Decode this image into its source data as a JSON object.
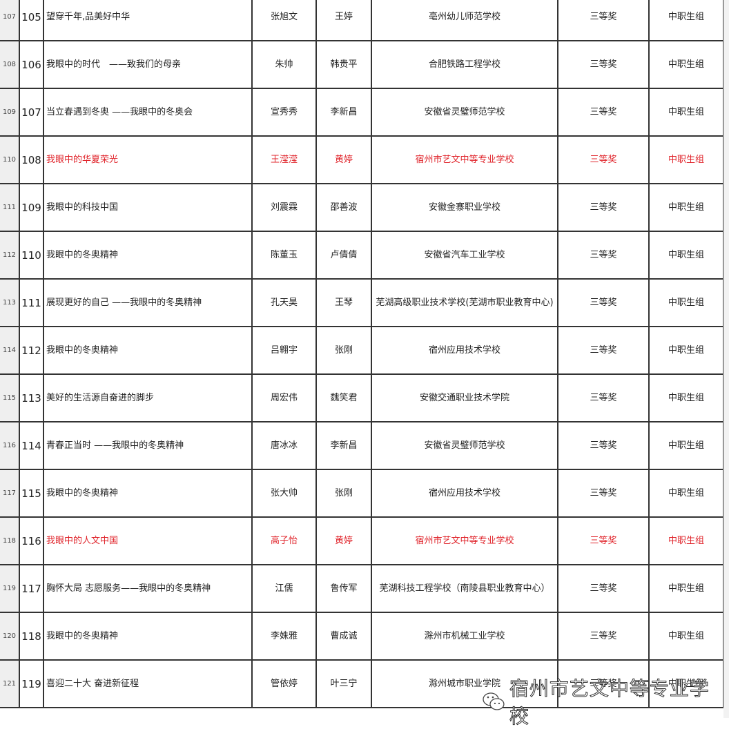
{
  "rows": [
    {
      "row_header": "107",
      "no": "105",
      "title": "望穿千年,品美好中华",
      "student": "张旭文",
      "teacher": "王婷",
      "school": "亳州幼儿师范学校",
      "award": "三等奖",
      "group": "中职生组",
      "highlight": false
    },
    {
      "row_header": "108",
      "no": "106",
      "title": "我眼中的时代　——致我们的母亲",
      "student": "朱帅",
      "teacher": "韩贵平",
      "school": "合肥铁路工程学校",
      "award": "三等奖",
      "group": "中职生组",
      "highlight": false
    },
    {
      "row_header": "109",
      "no": "107",
      "title": "当立春遇到冬奥 ——我眼中的冬奥会",
      "student": "宣秀秀",
      "teacher": "李新昌",
      "school": "安徽省灵璧师范学校",
      "award": "三等奖",
      "group": "中职生组",
      "highlight": false
    },
    {
      "row_header": "110",
      "no": "108",
      "title": "我眼中的华夏荣光",
      "student": "王滢滢",
      "teacher": "黄婷",
      "school": "宿州市艺文中等专业学校",
      "award": "三等奖",
      "group": "中职生组",
      "highlight": true
    },
    {
      "row_header": "111",
      "no": "109",
      "title": "我眼中的科技中国",
      "student": "刘震霖",
      "teacher": "邵善波",
      "school": "安徽金寨职业学校",
      "award": "三等奖",
      "group": "中职生组",
      "highlight": false
    },
    {
      "row_header": "112",
      "no": "110",
      "title": "我眼中的冬奥精神",
      "student": "陈董玉",
      "teacher": "卢倩倩",
      "school": "安徽省汽车工业学校",
      "award": "三等奖",
      "group": "中职生组",
      "highlight": false
    },
    {
      "row_header": "113",
      "no": "111",
      "title": "展现更好的自己 ——我眼中的冬奥精神",
      "student": "孔天昊",
      "teacher": "王琴",
      "school": "芜湖高级职业技术学校(芜湖市职业教育中心)",
      "award": "三等奖",
      "group": "中职生组",
      "highlight": false
    },
    {
      "row_header": "114",
      "no": "112",
      "title": "我眼中的冬奥精神",
      "student": "吕翱宇",
      "teacher": "张刚",
      "school": "宿州应用技术学校",
      "award": "三等奖",
      "group": "中职生组",
      "highlight": false
    },
    {
      "row_header": "115",
      "no": "113",
      "title": "美好的生活源自奋进的脚步",
      "student": "周宏伟",
      "teacher": "魏笑君",
      "school": "安徽交通职业技术学院",
      "award": "三等奖",
      "group": "中职生组",
      "highlight": false
    },
    {
      "row_header": "116",
      "no": "114",
      "title": "青春正当时 ——我眼中的冬奥精神",
      "student": "唐冰冰",
      "teacher": "李新昌",
      "school": "安徽省灵璧师范学校",
      "award": "三等奖",
      "group": "中职生组",
      "highlight": false
    },
    {
      "row_header": "117",
      "no": "115",
      "title": "我眼中的冬奥精神",
      "student": "张大帅",
      "teacher": "张刚",
      "school": "宿州应用技术学校",
      "award": "三等奖",
      "group": "中职生组",
      "highlight": false
    },
    {
      "row_header": "118",
      "no": "116",
      "title": "我眼中的人文中国",
      "student": "高子怡",
      "teacher": "黄婷",
      "school": "宿州市艺文中等专业学校",
      "award": "三等奖",
      "group": "中职生组",
      "highlight": true
    },
    {
      "row_header": "119",
      "no": "117",
      "title": "胸怀大局 志愿服务——我眼中的冬奥精神",
      "student": "江儒",
      "teacher": "鲁传军",
      "school": "芜湖科技工程学校（南陵县职业教育中心）",
      "award": "三等奖",
      "group": "中职生组",
      "highlight": false
    },
    {
      "row_header": "120",
      "no": "118",
      "title": "我眼中的冬奥精神",
      "student": "李姝雅",
      "teacher": "曹成诚",
      "school": "滁州市机械工业学校",
      "award": "三等奖",
      "group": "中职生组",
      "highlight": false
    },
    {
      "row_header": "121",
      "no": "119",
      "title": "喜迎二十大 奋进新征程",
      "student": "管依婷",
      "teacher": "叶三宁",
      "school": "滁州城市职业学院",
      "award": "三等奖",
      "group": "中职生组",
      "highlight": false
    }
  ],
  "colors": {
    "highlight": "#e0242b",
    "row_header_bg": "#efefef",
    "grid": "#333333"
  },
  "watermark": {
    "icon": "wechat-icon",
    "text": "宿州市艺文中等专业学校"
  }
}
